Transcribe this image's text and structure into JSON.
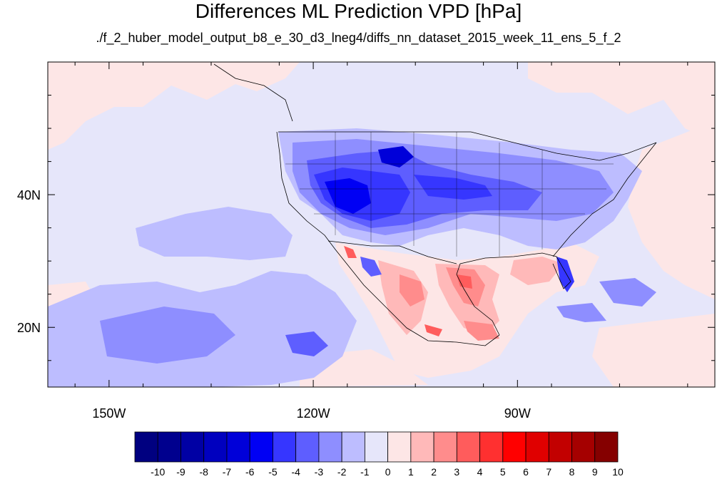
{
  "title": "Differences ML Prediction VPD [hPa]",
  "subtitle": "./f_2_huber_model_output_b8_e_30_d3_lneg4/diffs_nn_dataset_2015_week_11_ens_5_f_2",
  "axes": {
    "x_ticks": [
      {
        "value": -150,
        "label": "150W"
      },
      {
        "value": -120,
        "label": "120W"
      },
      {
        "value": -90,
        "label": "90W"
      }
    ],
    "y_ticks": [
      {
        "value": 40,
        "label": "40N"
      },
      {
        "value": 20,
        "label": "20N"
      }
    ],
    "lon_range": [
      -159,
      -61
    ],
    "lat_range": [
      11,
      60
    ]
  },
  "colors": {
    "background_negative": "#e6e6fa",
    "background_positive": "#fde6e6",
    "coastline": "#000000"
  },
  "colorbar": {
    "labels": [
      "-10",
      "-9",
      "-8",
      "-7",
      "-6",
      "-5",
      "-4",
      "-3",
      "-2",
      "-1",
      "0",
      "1",
      "2",
      "3",
      "4",
      "5",
      "6",
      "7",
      "8",
      "9",
      "10"
    ],
    "colors": [
      "#000080",
      "#00008e",
      "#0000a4",
      "#0000bf",
      "#0000d9",
      "#0000f4",
      "#3636ff",
      "#5e5eff",
      "#8e8eff",
      "#bdbdff",
      "#e6e6fa",
      "#fde6e6",
      "#ffb9b9",
      "#ff8c8c",
      "#ff5c5c",
      "#ff3030",
      "#ff0000",
      "#e00000",
      "#c20000",
      "#a50000",
      "#850000"
    ]
  }
}
